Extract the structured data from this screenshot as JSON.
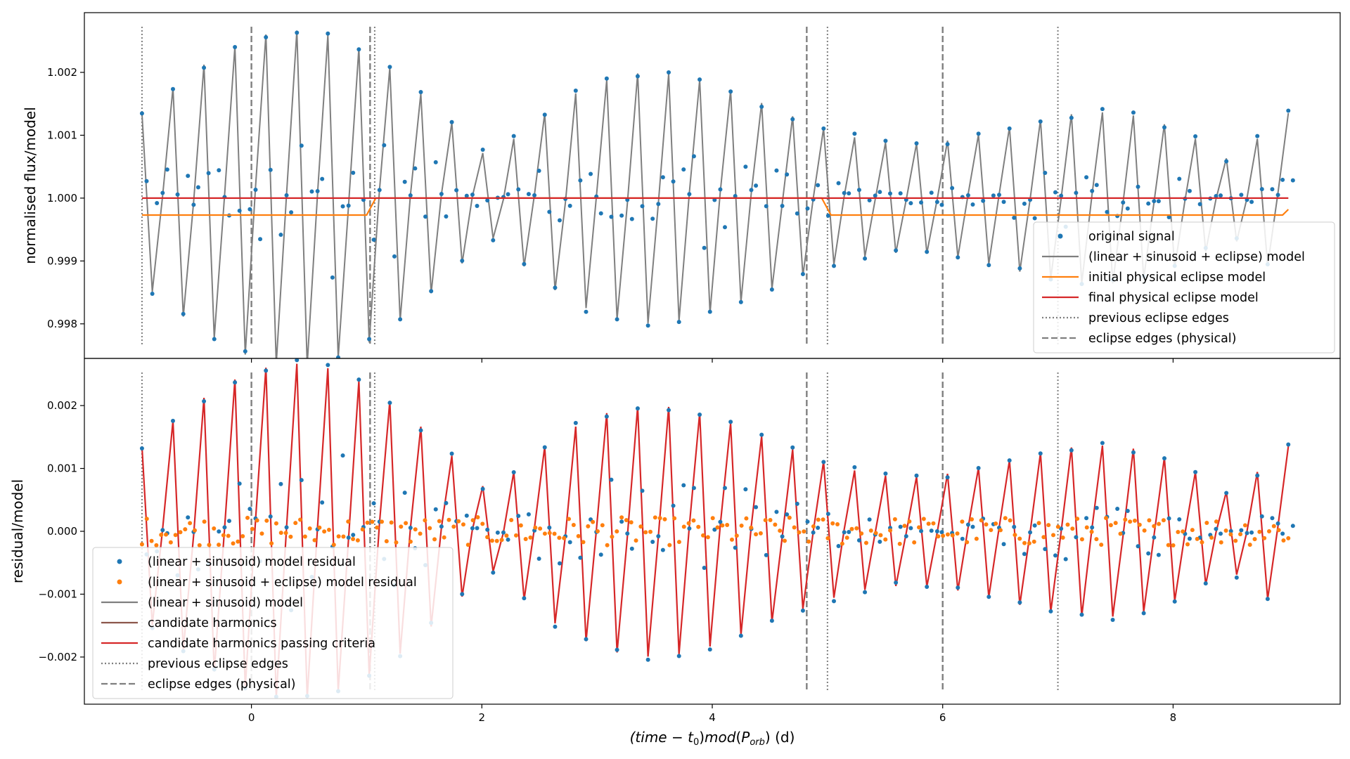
{
  "chart_data": [
    {
      "type": "scatter",
      "panel": "top",
      "xlabel": "",
      "ylabel": "normalised flux/model",
      "xlim": [
        -1.45,
        9.45
      ],
      "ylim": [
        0.99745,
        1.00295
      ],
      "xticks": [
        0,
        2,
        4,
        6,
        8
      ],
      "yticks": [
        {
          "value": 0.998,
          "label": "0.998"
        },
        {
          "value": 0.999,
          "label": "0.999"
        },
        {
          "value": 1.0,
          "label": "1.000"
        },
        {
          "value": 1.001,
          "label": "1.001"
        },
        {
          "value": 1.002,
          "label": "1.002"
        }
      ],
      "baseline": 1.0,
      "signal_amplitude": 0.0013,
      "legend_position": "lower right",
      "series": [
        {
          "name": "original signal",
          "kind": "points",
          "color": "#1f77b4"
        },
        {
          "name": "(linear + sinusoid + eclipse) model",
          "kind": "line",
          "color": "#7f7f7f"
        },
        {
          "name": "initial physical eclipse model",
          "kind": "line",
          "color": "#ff7f0e",
          "points": [
            [
              -0.95,
              0.99973
            ],
            [
              1.0,
              0.99973
            ],
            [
              1.08,
              1.0
            ],
            [
              4.95,
              1.0
            ],
            [
              5.03,
              0.99973
            ],
            [
              8.95,
              0.99973
            ],
            [
              9.0,
              0.99982
            ]
          ]
        },
        {
          "name": "final physical eclipse model",
          "kind": "line",
          "color": "#d62728",
          "points": [
            [
              -0.95,
              1.0
            ],
            [
              9.0,
              1.0
            ]
          ]
        },
        {
          "name": "previous eclipse edges",
          "kind": "vline-dotted",
          "color": "#7f7f7f",
          "x": [
            -0.95,
            1.07,
            5.0,
            7.0
          ]
        },
        {
          "name": "eclipse edges (physical)",
          "kind": "vline-dashed",
          "color": "#7f7f7f",
          "x": [
            0.0,
            1.03,
            4.82,
            6.0
          ]
        }
      ]
    },
    {
      "type": "scatter",
      "panel": "bottom",
      "xlabel": "(time − t₀) mod (P_orb) (d)",
      "ylabel": "residual/model",
      "xlim": [
        -1.45,
        9.45
      ],
      "ylim": [
        -0.00275,
        0.00275
      ],
      "xticks": [
        0,
        2,
        4,
        6,
        8
      ],
      "yticks": [
        {
          "value": -0.002,
          "label": "−0.002"
        },
        {
          "value": -0.001,
          "label": "−0.001"
        },
        {
          "value": 0.0,
          "label": "0.000"
        },
        {
          "value": 0.001,
          "label": "0.001"
        },
        {
          "value": 0.002,
          "label": "0.002"
        }
      ],
      "baseline": 0.0,
      "signal_amplitude": 0.0013,
      "legend_position": "lower left",
      "series": [
        {
          "name": "(linear + sinusoid) model residual",
          "kind": "points",
          "color": "#1f77b4"
        },
        {
          "name": "(linear + sinusoid + eclipse) model residual",
          "kind": "points",
          "color": "#ff7f0e"
        },
        {
          "name": "(linear + sinusoid) model",
          "kind": "line",
          "color": "#7f7f7f"
        },
        {
          "name": "candidate harmonics",
          "kind": "line",
          "color": "#8c564b"
        },
        {
          "name": "candidate harmonics passing criteria",
          "kind": "line",
          "color": "#d62728"
        },
        {
          "name": "previous eclipse edges",
          "kind": "vline-dotted",
          "color": "#7f7f7f",
          "x": [
            -0.95,
            1.07,
            5.0,
            7.0
          ]
        },
        {
          "name": "eclipse edges (physical)",
          "kind": "vline-dashed",
          "color": "#7f7f7f",
          "x": [
            0.0,
            1.03,
            4.82,
            6.0
          ]
        }
      ]
    }
  ],
  "signal_model": {
    "x_start": -0.95,
    "x_end": 9.0,
    "samples": 112,
    "envelope_terms": [
      {
        "amplitude": 0.00058,
        "period": 9.95,
        "phase": 0.06
      },
      {
        "amplitude": 0.00042,
        "period": 4.975,
        "phase": 0.5
      }
    ],
    "inner_period_samples": 3
  }
}
